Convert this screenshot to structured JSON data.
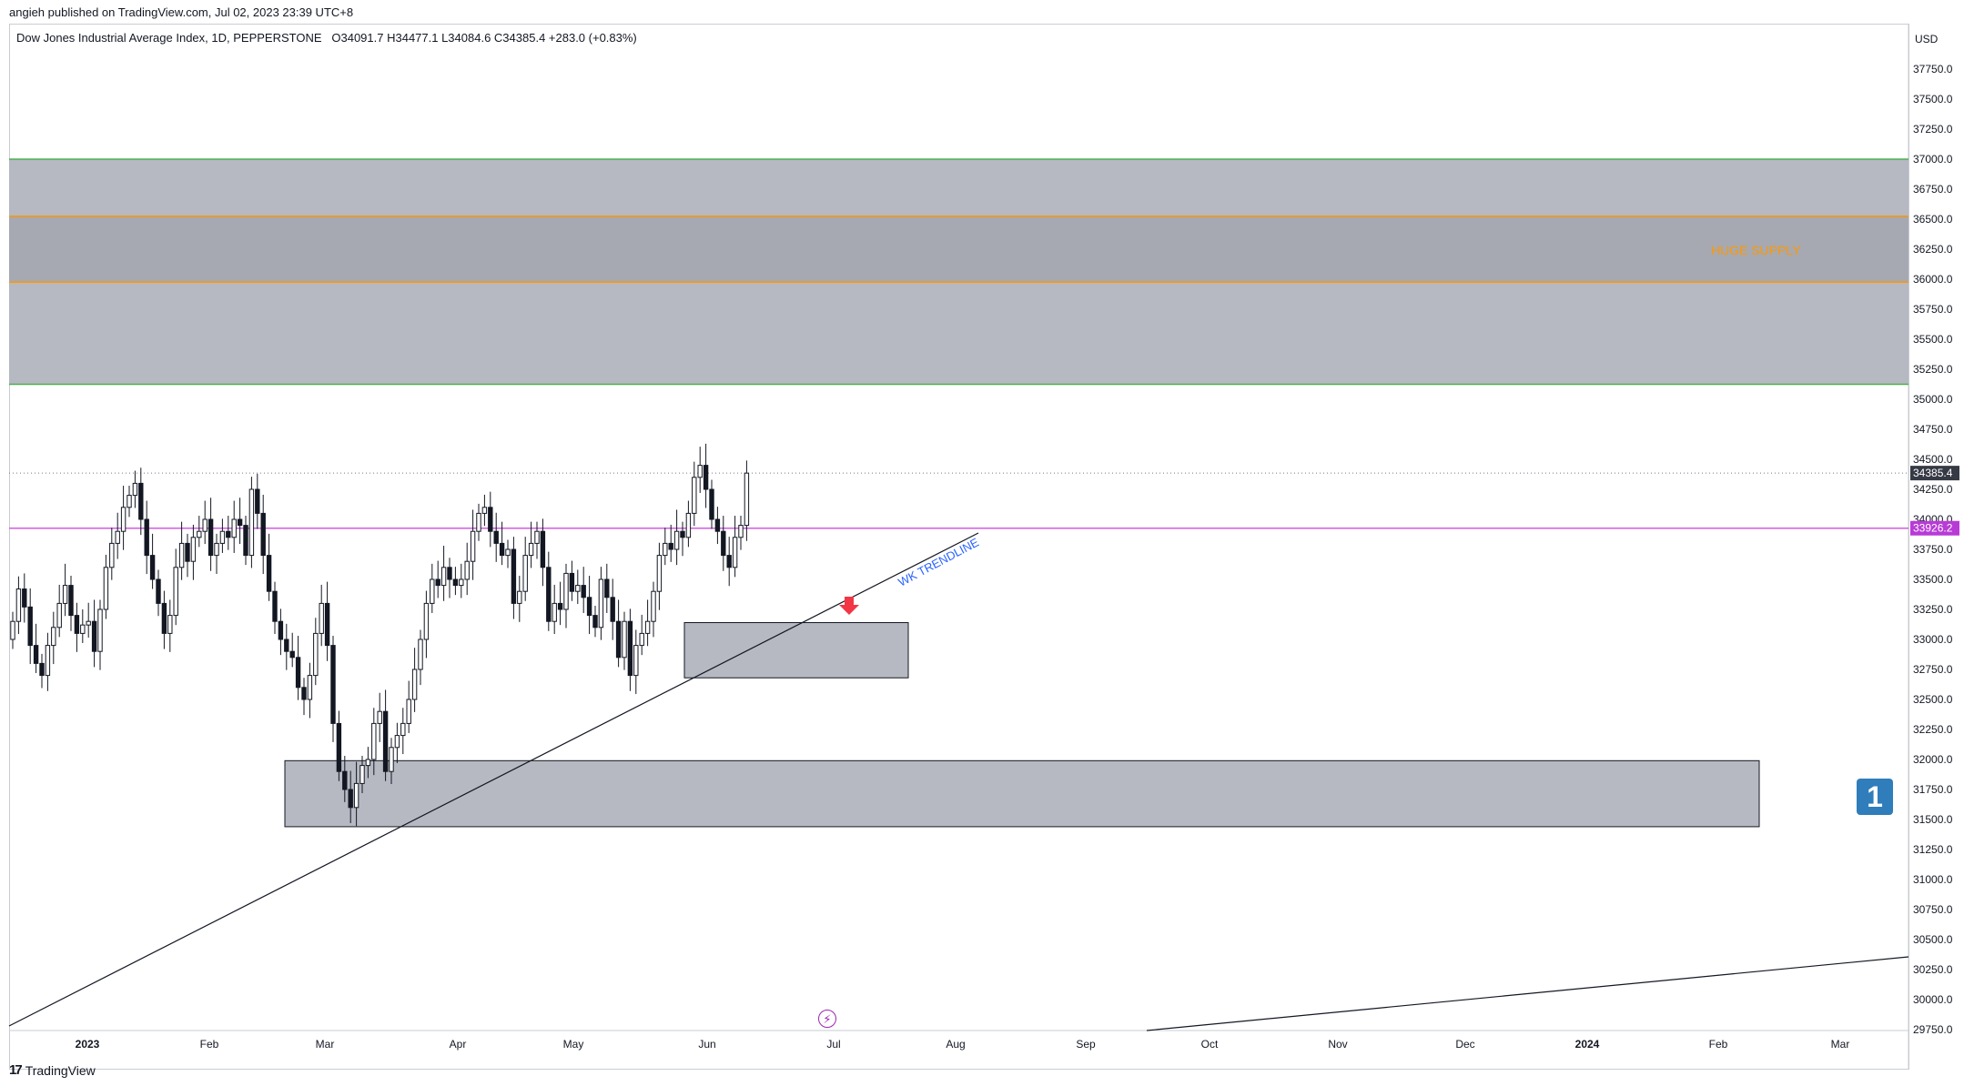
{
  "header": {
    "published": "angieh published on TradingView.com, Jul 02, 2023 23:39 UTC+8",
    "symbol": "Dow Jones Industrial Average Index, 1D, PEPPERSTONE",
    "ohlc": "O34091.7  H34477.1  L34084.6  C34385.4  +283.0 (+0.83%)"
  },
  "footer": {
    "brand": "TradingView",
    "logo_icon": "tradingview-logo-icon"
  },
  "price_scale": {
    "currency": "USD"
  },
  "badge_label": "1",
  "event_icon": "lightning-icon",
  "colors": {
    "zone_fill": "#b2b5be",
    "zone_inner": "#a5a8b0",
    "zone_green": "#4caf50",
    "zone_orange": "#ff9800",
    "magenta_line": "#d05ce3",
    "trend": "#131722",
    "arrow": "#f23645",
    "annotation_blue": "#2962ff"
  },
  "chart_data": {
    "type": "candlestick",
    "y_ticks": [
      37750,
      37500,
      37250,
      37000,
      36750,
      36500,
      36250,
      36000,
      35750,
      35500,
      35250,
      35000,
      34750,
      34500,
      34250,
      34000,
      33750,
      33500,
      33250,
      33000,
      32750,
      32500,
      32250,
      32000,
      31750,
      31500,
      31250,
      31000,
      30750,
      30500,
      30250,
      30000,
      29750
    ],
    "y_tick_labels": [
      "37750.0",
      "37500.0",
      "37250.0",
      "37000.0",
      "36750.0",
      "36500.0",
      "36250.0",
      "36000.0",
      "35750.0",
      "35500.0",
      "35250.0",
      "35000.0",
      "34750.0",
      "34500.0",
      "34250.0",
      "34000.0",
      "33750.0",
      "33500.0",
      "33250.0",
      "33000.0",
      "32750.0",
      "32500.0",
      "32250.0",
      "32000.0",
      "31750.0",
      "31500.0",
      "31250.0",
      "31000.0",
      "30750.0",
      "30500.0",
      "30250.0",
      "30000.0",
      "29750.0"
    ],
    "ylim": [
      29700,
      38100
    ],
    "x_labels": [
      "2023",
      "Feb",
      "Mar",
      "Apr",
      "May",
      "Jun",
      "Jul",
      "Aug",
      "Sep",
      "Oct",
      "Nov",
      "Dec",
      "2024",
      "Feb",
      "Mar"
    ],
    "x_label_bold": [
      "2023",
      "2024"
    ],
    "last_price": {
      "value": 34385.4,
      "label": "34385.4"
    },
    "horizontal_line": {
      "value": 33926.2,
      "label": "33926.2"
    },
    "closes": [
      33150,
      33420,
      33270,
      32950,
      32800,
      32700,
      32950,
      33100,
      33300,
      33450,
      33200,
      33050,
      33120,
      33150,
      32900,
      33250,
      33600,
      33800,
      33900,
      34100,
      34200,
      34300,
      34000,
      33700,
      33500,
      33300,
      33050,
      33200,
      33600,
      33800,
      33650,
      33850,
      33900,
      34000,
      33700,
      33800,
      33900,
      33850,
      34000,
      33950,
      33700,
      34250,
      34050,
      33700,
      33400,
      33150,
      33000,
      32900,
      32850,
      32600,
      32500,
      32700,
      33050,
      33300,
      32950,
      32300,
      31900,
      31750,
      31600,
      31800,
      31950,
      32000,
      32300,
      32400,
      31900,
      32100,
      32200,
      32300,
      32500,
      32750,
      33000,
      33300,
      33500,
      33450,
      33600,
      33500,
      33450,
      33500,
      33650,
      33900,
      34050,
      34100,
      33900,
      33800,
      33700,
      33750,
      33300,
      33400,
      33700,
      33800,
      33900,
      33600,
      33150,
      33300,
      33250,
      33550,
      33400,
      33450,
      33350,
      33200,
      33100,
      33500,
      33350,
      33150,
      32850,
      33150,
      32700,
      32950,
      33050,
      33150,
      33400,
      33700,
      33800,
      33750,
      33900,
      33850,
      34050,
      34350,
      34450,
      34250,
      34000,
      33900,
      33700,
      33600,
      33850,
      33950,
      34385
    ],
    "zones": [
      {
        "name": "outer-supply-zone",
        "from": 35125,
        "to": 37000
      },
      {
        "name": "inner-supply-zone",
        "from": 35975,
        "to": 36525
      },
      {
        "name": "demand-zone-small",
        "from": 32680,
        "to": 33140
      },
      {
        "name": "demand-zone-large",
        "from": 31440,
        "to": 31990
      }
    ],
    "annotations": [
      {
        "name": "supply-label",
        "text": "HUGE SUPPLY"
      },
      {
        "name": "trendline-label",
        "text": "WK TRENDLINE"
      }
    ]
  }
}
